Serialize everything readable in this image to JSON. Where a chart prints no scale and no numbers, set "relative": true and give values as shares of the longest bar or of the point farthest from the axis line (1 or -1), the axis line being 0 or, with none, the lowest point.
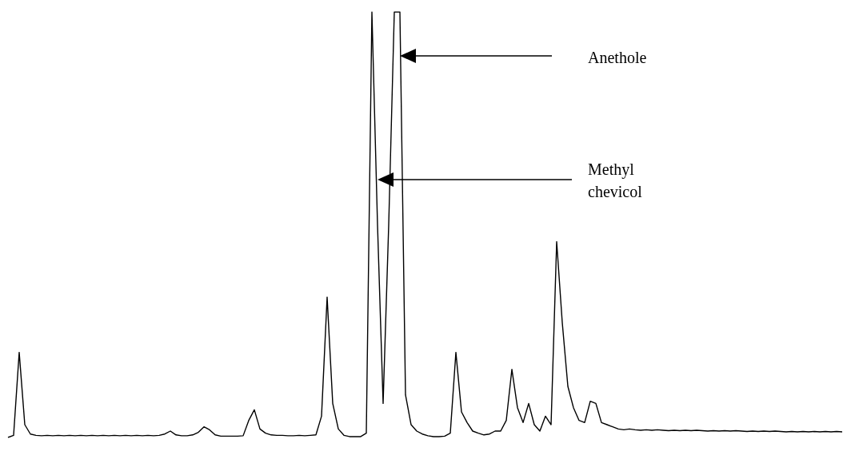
{
  "chart_data": {
    "type": "line",
    "relative": true,
    "color": "#000000",
    "categories": [
      null,
      null,
      null,
      null,
      null,
      null,
      null,
      null,
      null,
      null,
      null,
      null,
      null,
      null,
      null,
      null,
      null,
      null,
      null,
      null,
      null,
      null,
      null,
      null,
      null,
      null,
      null,
      null,
      null,
      null,
      null,
      null,
      null,
      null,
      null,
      null,
      null,
      null,
      null,
      null,
      null,
      null,
      null,
      null,
      null,
      null,
      null,
      null,
      null,
      null,
      null,
      null,
      null,
      null,
      null,
      null,
      null,
      null,
      null,
      null,
      null,
      null,
      null,
      null,
      null,
      null,
      null,
      null,
      null,
      null,
      null,
      null,
      null,
      null,
      null,
      null,
      null,
      null,
      null,
      null,
      null,
      null,
      null,
      null,
      null,
      null,
      null,
      null,
      null,
      null,
      null,
      null,
      null,
      null,
      null,
      null,
      null,
      null,
      null,
      null,
      null,
      null,
      null,
      null,
      null,
      null,
      null,
      null,
      null,
      null,
      null,
      null,
      null,
      null,
      null,
      null,
      null,
      null,
      null,
      null,
      null,
      null,
      null,
      null,
      null,
      null,
      null,
      null,
      null,
      null,
      null,
      null,
      null,
      null,
      null,
      null,
      null,
      null,
      null,
      null,
      null,
      null,
      null,
      null,
      null,
      null,
      null,
      null,
      null,
      null
    ],
    "values": [
      0,
      0.005,
      0.2,
      0.03,
      0.008,
      0.005,
      0.004,
      0.005,
      0.004,
      0.005,
      0.004,
      0.005,
      0.004,
      0.005,
      0.004,
      0.005,
      0.004,
      0.005,
      0.004,
      0.005,
      0.004,
      0.005,
      0.004,
      0.005,
      0.004,
      0.005,
      0.004,
      0.005,
      0.008,
      0.015,
      0.006,
      0.004,
      0.004,
      0.006,
      0.012,
      0.025,
      0.018,
      0.006,
      0.003,
      0.003,
      0.003,
      0.003,
      0.004,
      0.04,
      0.065,
      0.02,
      0.01,
      0.006,
      0.005,
      0.005,
      0.004,
      0.004,
      0.005,
      0.004,
      0.005,
      0.006,
      0.05,
      0.33,
      0.08,
      0.02,
      0.005,
      0.002,
      0.002,
      0.002,
      0.01,
      1,
      0.5,
      0.08,
      0.5,
      1,
      1,
      0.1,
      0.03,
      0.015,
      0.008,
      0.004,
      0.002,
      0.002,
      0.003,
      0.01,
      0.2,
      0.06,
      0.035,
      0.015,
      0.01,
      0.006,
      0.008,
      0.015,
      0.015,
      0.04,
      0.16,
      0.07,
      0.035,
      0.08,
      0.03,
      0.015,
      0.05,
      0.03,
      0.46,
      0.27,
      0.12,
      0.07,
      0.04,
      0.035,
      0.085,
      0.08,
      0.035,
      0.03,
      0.025,
      0.02,
      0.018,
      0.02,
      0.018,
      0.017,
      0.018,
      0.017,
      0.018,
      0.017,
      0.016,
      0.017,
      0.016,
      0.017,
      0.016,
      0.017,
      0.016,
      0.015,
      0.016,
      0.015,
      0.016,
      0.015,
      0.016,
      0.015,
      0.014,
      0.015,
      0.014,
      0.015,
      0.014,
      0.015,
      0.014,
      0.013,
      0.014,
      0.013,
      0.014,
      0.013,
      0.014,
      0.013,
      0.014,
      0.013,
      0.014,
      0.013
    ],
    "annotations": [
      "Anethole",
      "Methyl chevicol"
    ]
  }
}
